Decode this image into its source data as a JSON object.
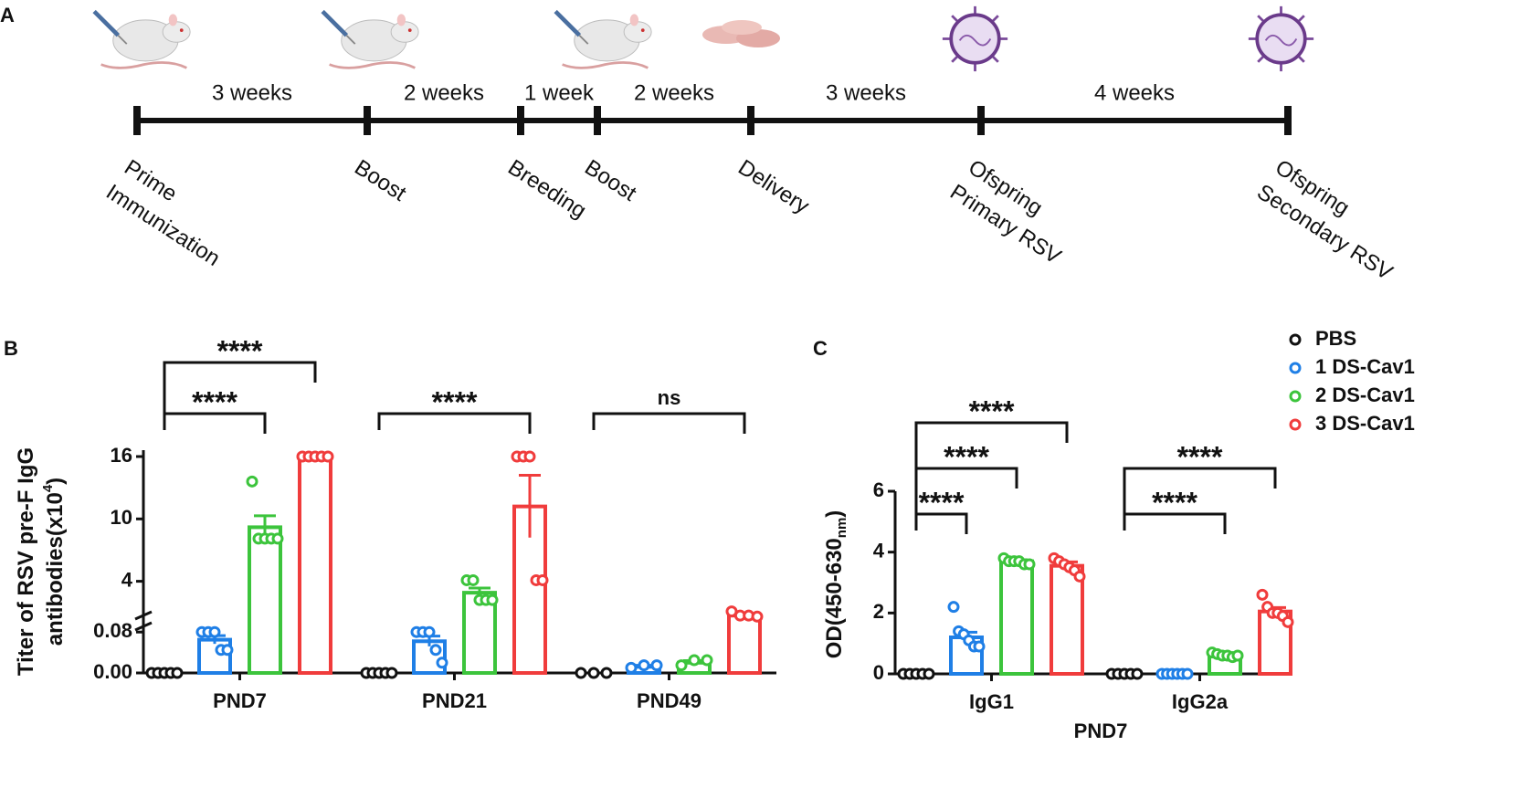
{
  "panel_labels": [
    "A",
    "B",
    "C"
  ],
  "timeline": {
    "durations": [
      3,
      2,
      1,
      2,
      3,
      4
    ],
    "duration_labels": [
      "3 weeks",
      "2 weeks",
      "1 week",
      "2 weeks",
      "3 weeks",
      "4 weeks"
    ],
    "events": [
      [
        "Prime",
        "Immunization"
      ],
      [
        "Boost"
      ],
      [
        "Breeding"
      ],
      [
        "Boost"
      ],
      [
        "Delivery"
      ],
      [
        "Ofspring",
        "Primary RSV"
      ],
      [
        "Ofspring",
        "Secondary RSV"
      ]
    ]
  },
  "chart_data": [
    {
      "type": "bar",
      "ylabel": [
        "Titer of RSV pre-F IgG",
        "antibodies(x10",
        "4",
        ")"
      ],
      "categories": [
        "PND7",
        "PND21",
        "PND49"
      ],
      "ylim_lower": [
        0,
        0.1
      ],
      "ylim_upper": [
        0.1,
        16
      ],
      "yticks": [
        {
          "value": 0,
          "label": "0.00"
        },
        {
          "value": 0.08,
          "label": "0.08"
        },
        4,
        10,
        16
      ],
      "series": [
        {
          "name": "PBS",
          "color": "#111111",
          "values": [
            0,
            0,
            0
          ],
          "errors": [
            0,
            0,
            0
          ],
          "points": [
            [
              0,
              0,
              0,
              0,
              0
            ],
            [
              0,
              0,
              0,
              0,
              0
            ],
            [
              0,
              0,
              0
            ]
          ]
        },
        {
          "name": "1 DS-Cav1",
          "color": "#1f7fe6",
          "values": [
            0.065,
            0.062,
            0.012
          ],
          "errors": [
            0.008,
            0.01,
            0.003
          ],
          "points": [
            [
              0.08,
              0.08,
              0.08,
              0.045,
              0.045
            ],
            [
              0.08,
              0.08,
              0.08,
              0.045,
              0.02
            ],
            [
              0.01,
              0.015,
              0.015
            ]
          ]
        },
        {
          "name": "2 DS-Cav1",
          "color": "#3cc43c",
          "values": [
            9.2,
            2.9,
            0.02
          ],
          "errors": [
            1.1,
            0.45,
            0.004
          ],
          "points": [
            [
              13.6,
              8.1,
              8.1,
              8.1,
              8.1
            ],
            [
              4.1,
              4.1,
              2.2,
              2.2,
              2.2
            ],
            [
              0.015,
              0.025,
              0.025
            ]
          ]
        },
        {
          "name": "3 DS-Cav1",
          "color": "#f03c3c",
          "values": [
            16,
            11.2,
            0.7
          ],
          "errors": [
            0,
            3,
            0.1
          ],
          "points": [
            [
              16,
              16,
              16,
              16,
              16
            ],
            [
              16,
              16,
              16,
              4.1,
              4.1
            ],
            [
              1.1,
              0.7,
              0.7,
              0.6
            ]
          ]
        }
      ],
      "annotations": [
        {
          "text": "****",
          "category": "PND7",
          "from": "PBS",
          "to": "2 DS-Cav1"
        },
        {
          "text": "****",
          "category": "PND7",
          "from": "PBS",
          "to": "3 DS-Cav1"
        },
        {
          "text": "****",
          "category": "PND21",
          "from": "PBS",
          "to": "3 DS-Cav1"
        },
        {
          "text": "ns",
          "category": "PND49",
          "from": "PBS",
          "to": "3 DS-Cav1"
        }
      ]
    },
    {
      "type": "bar",
      "ylabel": [
        "OD(450-630",
        "nm",
        ")"
      ],
      "xlabel": "PND7",
      "categories": [
        "IgG1",
        "IgG2a"
      ],
      "ylim": [
        0,
        6
      ],
      "yticks": [
        0,
        2,
        4,
        6
      ],
      "legend": "top-right",
      "series": [
        {
          "name": "PBS",
          "color": "#111111",
          "values": [
            0,
            0
          ],
          "errors": [
            0,
            0
          ],
          "points": [
            [
              0,
              0,
              0,
              0,
              0
            ],
            [
              0,
              0,
              0,
              0,
              0
            ]
          ]
        },
        {
          "name": "1 DS-Cav1",
          "color": "#1f7fe6",
          "values": [
            1.2,
            0
          ],
          "errors": [
            0.17,
            0
          ],
          "points": [
            [
              2.2,
              1.4,
              1.3,
              1.1,
              0.9,
              0.9
            ],
            [
              0,
              0,
              0,
              0,
              0,
              0
            ]
          ]
        },
        {
          "name": "2 DS-Cav1",
          "color": "#3cc43c",
          "values": [
            3.7,
            0.62
          ],
          "errors": [
            0.05,
            0.04
          ],
          "points": [
            [
              3.8,
              3.7,
              3.7,
              3.7,
              3.6,
              3.6
            ],
            [
              0.7,
              0.65,
              0.6,
              0.6,
              0.55,
              0.6
            ]
          ]
        },
        {
          "name": "3 DS-Cav1",
          "color": "#f03c3c",
          "values": [
            3.55,
            2.05
          ],
          "errors": [
            0.13,
            0.13
          ],
          "points": [
            [
              3.8,
              3.7,
              3.6,
              3.5,
              3.4,
              3.2
            ],
            [
              2.6,
              2.2,
              2.0,
              2.0,
              1.9,
              1.7
            ]
          ]
        }
      ],
      "annotations": [
        {
          "text": "****",
          "category": "IgG1",
          "from": "PBS",
          "to": "1 DS-Cav1"
        },
        {
          "text": "****",
          "category": "IgG1",
          "from": "PBS",
          "to": "2 DS-Cav1"
        },
        {
          "text": "****",
          "category": "IgG1",
          "from": "PBS",
          "to": "3 DS-Cav1"
        },
        {
          "text": "****",
          "category": "IgG2a",
          "from": "PBS",
          "to": "2 DS-Cav1"
        },
        {
          "text": "****",
          "category": "IgG2a",
          "from": "PBS",
          "to": "3 DS-Cav1"
        }
      ]
    }
  ]
}
